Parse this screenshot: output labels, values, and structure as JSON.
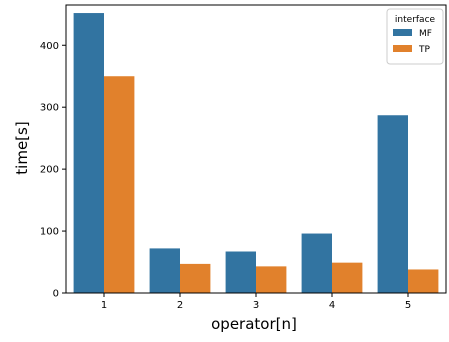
{
  "chart_data": {
    "type": "bar",
    "xlabel": "operator[n]",
    "ylabel": "time[s]",
    "categories": [
      "1",
      "2",
      "3",
      "4",
      "5"
    ],
    "series": [
      {
        "name": "MF",
        "color": "#3274a1",
        "values": [
          452,
          72,
          67,
          96,
          287
        ]
      },
      {
        "name": "TP",
        "color": "#e1812c",
        "values": [
          350,
          47,
          43,
          49,
          38
        ]
      }
    ],
    "ylim": [
      0,
      465
    ],
    "yticks": [
      0,
      100,
      200,
      300,
      400
    ],
    "legend": {
      "title": "interface",
      "position": "top-right"
    },
    "grid": false
  }
}
